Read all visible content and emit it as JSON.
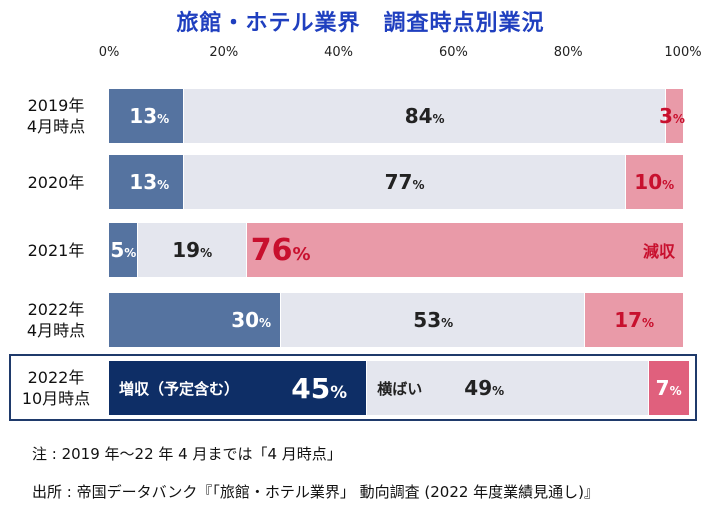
{
  "title": "旅館・ホテル業界　調査時点別業況",
  "axis": {
    "ticks": [
      "0%",
      "20%",
      "40%",
      "60%",
      "80%",
      "100%"
    ]
  },
  "colors": {
    "increase": "#5573a0",
    "increase_highlight": "#0e2e66",
    "flat": "#e4e6ee",
    "decrease": "#e99aa8",
    "decrease_strong": "#e0607d",
    "decrease_text": "#c8102e",
    "dark_text": "#222222",
    "white_text": "#ffffff"
  },
  "chart_data": {
    "type": "bar",
    "orientation": "horizontal",
    "stacked": true,
    "title": "旅館・ホテル業界　調査時点別業況",
    "xlim": [
      0,
      100
    ],
    "categories": [
      "2019年\n4月時点",
      "2020年",
      "2021年",
      "2022年\n4月時点",
      "2022年\n10月時点"
    ],
    "series": [
      {
        "name": "増収（予定含む）",
        "values": [
          13,
          13,
          5,
          30,
          45
        ]
      },
      {
        "name": "横ばい",
        "values": [
          84,
          77,
          19,
          53,
          49
        ]
      },
      {
        "name": "減収",
        "values": [
          3,
          10,
          76,
          17,
          7
        ]
      }
    ],
    "rows": [
      {
        "label_lines": [
          "2019年",
          "4月時点"
        ],
        "values": [
          13,
          84,
          3
        ]
      },
      {
        "label_lines": [
          "2020年"
        ],
        "values": [
          13,
          77,
          10
        ]
      },
      {
        "label_lines": [
          "2021年"
        ],
        "values": [
          5,
          19,
          76
        ],
        "inline": {
          "decrease": "減収"
        }
      },
      {
        "label_lines": [
          "2022年",
          "4月時点"
        ],
        "values": [
          30,
          53,
          17
        ]
      },
      {
        "label_lines": [
          "2022年",
          "10月時点"
        ],
        "values": [
          45,
          49,
          7
        ],
        "inline": {
          "increase": "増収（予定含む）",
          "flat": "横ばい"
        },
        "highlighted": true
      }
    ],
    "value_suffix": "%"
  },
  "notes": {
    "note": "注 : 2019 年〜22 年 4 月までは「4 月時点」",
    "source": "出所 : 帝国データバンク『「旅館・ホテル業界」 動向調査 (2022 年度業績見通し)』"
  }
}
